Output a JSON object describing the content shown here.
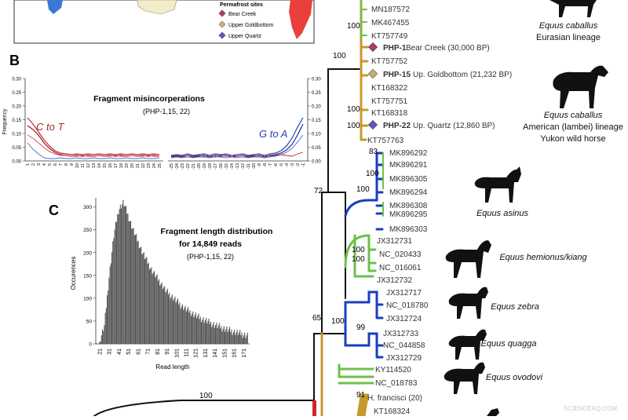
{
  "map_legend": {
    "title": "Permafrost sites",
    "items": [
      {
        "label": "Bear Creek",
        "color": "#b03a6a"
      },
      {
        "label": "Upper Goldbottom",
        "color": "#c8b070"
      },
      {
        "label": "Upper Quartz",
        "color": "#5a58b8"
      }
    ]
  },
  "panel_b": {
    "label": "B",
    "title": "Fragment misincorperations",
    "subtitle": "(PHP-1,15, 22)",
    "ylabel": "Frequency",
    "c_to_t": "C to T",
    "g_to_a": "G to A",
    "yticks": [
      "0.30",
      "0.25",
      "0.20",
      "0.15",
      "0.10",
      "0.05",
      "0.00"
    ],
    "xticks_left": [
      "1",
      "2",
      "3",
      "4",
      "5",
      "6",
      "7",
      "8",
      "9",
      "10",
      "11",
      "12",
      "13",
      "14",
      "15",
      "16",
      "17",
      "18",
      "19",
      "20",
      "21",
      "22",
      "23",
      "24",
      "25"
    ],
    "xticks_right": [
      "-25",
      "-24",
      "-23",
      "-22",
      "-21",
      "-20",
      "-19",
      "-18",
      "-17",
      "-16",
      "-15",
      "-14",
      "-13",
      "-12",
      "-11",
      "-10",
      "-9",
      "-8",
      "-7",
      "-6",
      "-5",
      "-4",
      "-3",
      "-2",
      "-1"
    ]
  },
  "panel_c": {
    "label": "C",
    "title_line1": "Fragment length distribution",
    "title_line2": "for 14,849 reads",
    "subtitle": "(PHP-1,15, 22)",
    "ylabel": "Occurences",
    "xlabel": "Read length",
    "yticks": [
      "0",
      "50",
      "100",
      "150",
      "200",
      "250",
      "300"
    ],
    "xticks": [
      "21",
      "31",
      "41",
      "51",
      "61",
      "71",
      "81",
      "91",
      "101",
      "111",
      "121",
      "131",
      "141",
      "151",
      "161",
      "171"
    ]
  },
  "chart_data": {
    "type": "bar",
    "title": "Fragment length distribution for 14,849 reads",
    "xlabel": "Read length",
    "ylabel": "Occurences",
    "ylim": [
      0,
      320
    ],
    "x": [
      21,
      26,
      31,
      36,
      41,
      46,
      51,
      56,
      61,
      66,
      71,
      76,
      81,
      86,
      91,
      96,
      101,
      106,
      111,
      116,
      121,
      126,
      131,
      136,
      141,
      146,
      151,
      156,
      161,
      166,
      171,
      176
    ],
    "values": [
      5,
      40,
      150,
      240,
      295,
      310,
      280,
      250,
      225,
      200,
      180,
      160,
      145,
      130,
      115,
      105,
      95,
      85,
      77,
      70,
      63,
      57,
      52,
      47,
      42,
      38,
      34,
      30,
      27,
      24,
      21,
      18
    ]
  },
  "tree": {
    "taxa_top": [
      "MN187572",
      "MK467455",
      "KT757749"
    ],
    "php1": "PHP-1",
    "php1_site": "Bear Creek (30,000 BP)",
    "kt757752": "KT757752",
    "php15": "PHP-15",
    "php15_site": "Up. Goldbottom (21,232 BP)",
    "mid_taxa": [
      "KT168322",
      "KT757751",
      "KT168318"
    ],
    "php22": "PHP-22",
    "php22_site": "Up. Quartz (12,860 BP)",
    "kt757763": "KT757763",
    "asinus_taxa": [
      "MK896292",
      "MK896291",
      "MK896305",
      "MK896294",
      "MK896308",
      "MK896295",
      "MK896303"
    ],
    "hemionus_taxa": [
      "JX312731",
      "NC_020433",
      "NC_016061",
      "JX312732"
    ],
    "zebra_taxa": [
      "JX312717",
      "NC_018780",
      "JX312724"
    ],
    "quagga_taxa": [
      "JX312733",
      "NC_044858",
      "JX312729"
    ],
    "ovodovi_taxa": [
      "KY114520",
      "NC_018783"
    ],
    "francisci": "H. francisci (20)",
    "kt168324": "KT168324",
    "supports": {
      "s100a": "100",
      "s100b": "100",
      "s100c": "100",
      "s100d": "100",
      "s83": "83",
      "s72": "72",
      "s100e": "100",
      "s100f": "100",
      "s100g": "100",
      "s100h": "100",
      "s99": "99",
      "s100i": "100",
      "s65": "65",
      "s91": "91",
      "s100root": "100"
    }
  },
  "species": {
    "caballus_eur": "Equus caballus",
    "caballus_eur_sub": "Eurasian lineage",
    "caballus_am": "Equus caballus",
    "caballus_am_sub1": "American (lambei) lineage",
    "caballus_am_sub2": "Yukon wild horse",
    "asinus": "Equus asinus",
    "hemionus": "Equus hemionus/kiang",
    "zebra": "Equus zebra",
    "quagga": "Equus quagga",
    "ovodovi": "Equus ovodovi"
  },
  "watermark": "SCIENCEAQ.COM"
}
